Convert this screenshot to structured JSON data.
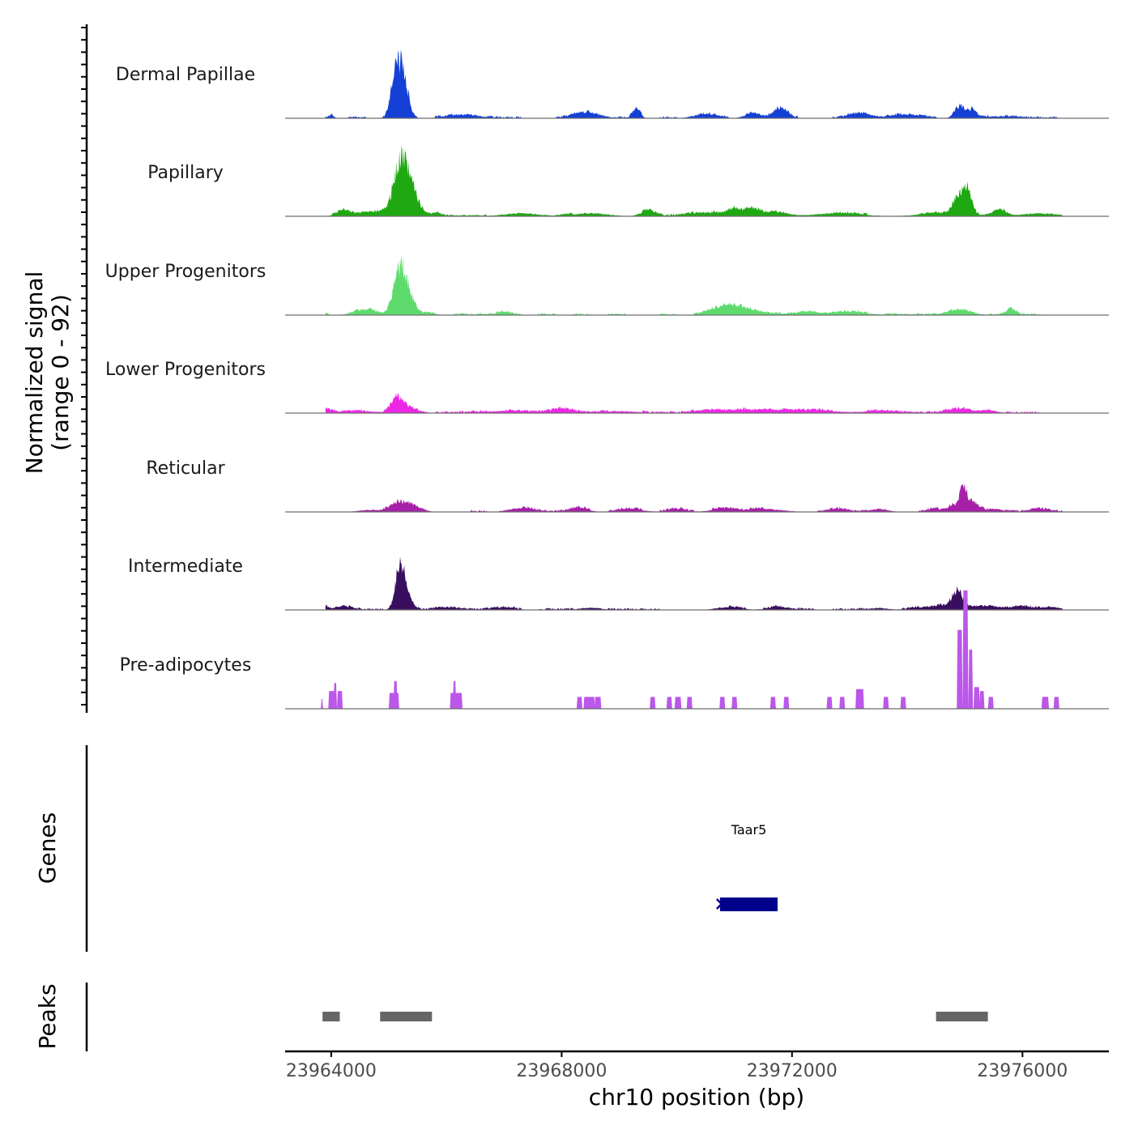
{
  "chart_data": {
    "type": "area",
    "title": "",
    "ylabel_line1": "Normalized signal",
    "ylabel_line2": "(range 0 - 92)",
    "ylim": [
      0,
      92
    ],
    "xlabel": "chr10 position (bp)",
    "xlim": [
      23963200,
      23977500
    ],
    "xticks": [
      23964000,
      23968000,
      23972000,
      23976000
    ],
    "xtick_labels": [
      "23964000",
      "23968000",
      "23972000",
      "23976000"
    ],
    "series": [
      {
        "name": "Dermal Papillae",
        "color": "#1540d6",
        "noise": [
          23963900,
          23976700,
          2
        ],
        "bumps": [
          [
            23963850,
            40,
            4
          ],
          [
            23964000,
            40,
            4
          ],
          [
            23965150,
            90,
            58
          ],
          [
            23965300,
            70,
            20
          ],
          [
            23966300,
            250,
            4
          ],
          [
            23968400,
            200,
            6
          ],
          [
            23969300,
            60,
            12
          ],
          [
            23970500,
            200,
            4
          ],
          [
            23971300,
            120,
            5
          ],
          [
            23971800,
            120,
            10
          ],
          [
            23973200,
            200,
            5
          ],
          [
            23974000,
            250,
            4
          ],
          [
            23974900,
            80,
            12
          ],
          [
            23975100,
            80,
            8
          ],
          [
            23975600,
            300,
            2
          ]
        ]
      },
      {
        "name": "Papillary",
        "color": "#1fa812",
        "noise": [
          23963900,
          23976700,
          2
        ],
        "bumps": [
          [
            23964200,
            90,
            5
          ],
          [
            23964800,
            400,
            4
          ],
          [
            23965230,
            130,
            56
          ],
          [
            23965450,
            120,
            12
          ],
          [
            23965800,
            100,
            3
          ],
          [
            23967300,
            300,
            3
          ],
          [
            23968500,
            300,
            3
          ],
          [
            23969500,
            120,
            6
          ],
          [
            23970500,
            300,
            4
          ],
          [
            23971000,
            120,
            6
          ],
          [
            23971300,
            120,
            7
          ],
          [
            23971700,
            200,
            5
          ],
          [
            23972800,
            400,
            3
          ],
          [
            23974500,
            300,
            3
          ],
          [
            23974850,
            80,
            12
          ],
          [
            23975020,
            90,
            28
          ],
          [
            23975600,
            120,
            6
          ],
          [
            23976300,
            300,
            3
          ]
        ]
      },
      {
        "name": "Upper Progenitors",
        "color": "#5fdb6e",
        "noise": [
          23963900,
          23976400,
          2
        ],
        "bumps": [
          [
            23963850,
            60,
            4
          ],
          [
            23964600,
            200,
            5
          ],
          [
            23965200,
            110,
            50
          ],
          [
            23965400,
            100,
            10
          ],
          [
            23965700,
            100,
            3
          ],
          [
            23967000,
            120,
            3
          ],
          [
            23970700,
            200,
            6
          ],
          [
            23971000,
            150,
            8
          ],
          [
            23971300,
            200,
            4
          ],
          [
            23972200,
            300,
            3
          ],
          [
            23973000,
            300,
            3
          ],
          [
            23974900,
            200,
            6
          ],
          [
            23975800,
            80,
            6
          ]
        ]
      },
      {
        "name": "Lower Progenitors",
        "color": "#ec27e4",
        "noise": [
          23963900,
          23976700,
          2
        ],
        "bumps": [
          [
            23963920,
            80,
            5
          ],
          [
            23964500,
            300,
            2
          ],
          [
            23965150,
            100,
            15
          ],
          [
            23965400,
            150,
            4
          ],
          [
            23967000,
            400,
            2
          ],
          [
            23968000,
            200,
            4
          ],
          [
            23969000,
            300,
            2
          ],
          [
            23970500,
            200,
            3
          ],
          [
            23971500,
            500,
            4
          ],
          [
            23972500,
            300,
            2
          ],
          [
            23973500,
            300,
            2
          ],
          [
            23974900,
            200,
            4
          ],
          [
            23975400,
            150,
            3
          ]
        ]
      },
      {
        "name": "Reticular",
        "color": "#a621a8",
        "noise": [
          23963900,
          23976700,
          2
        ],
        "bumps": [
          [
            23963850,
            20,
            6
          ],
          [
            23964700,
            200,
            2
          ],
          [
            23965200,
            150,
            10
          ],
          [
            23965500,
            120,
            4
          ],
          [
            23967300,
            200,
            4
          ],
          [
            23968300,
            150,
            4
          ],
          [
            23969200,
            200,
            3
          ],
          [
            23970000,
            150,
            3
          ],
          [
            23970800,
            200,
            3
          ],
          [
            23971500,
            300,
            3
          ],
          [
            23972800,
            150,
            3
          ],
          [
            23973500,
            150,
            3
          ],
          [
            23974500,
            150,
            3
          ],
          [
            23974780,
            60,
            6
          ],
          [
            23974970,
            70,
            24
          ],
          [
            23975150,
            100,
            8
          ],
          [
            23975500,
            150,
            3
          ],
          [
            23976300,
            150,
            3
          ]
        ]
      },
      {
        "name": "Intermediate",
        "color": "#3a0e5e",
        "noise": [
          23963900,
          23976700,
          2
        ],
        "bumps": [
          [
            23963880,
            40,
            5
          ],
          [
            23964200,
            150,
            4
          ],
          [
            23965200,
            80,
            48
          ],
          [
            23965350,
            80,
            10
          ],
          [
            23966000,
            200,
            2
          ],
          [
            23967000,
            200,
            2
          ],
          [
            23968500,
            200,
            2
          ],
          [
            23970900,
            200,
            3
          ],
          [
            23971800,
            200,
            3
          ],
          [
            23973500,
            150,
            2
          ],
          [
            23974500,
            300,
            4
          ],
          [
            23974870,
            90,
            18
          ],
          [
            23975300,
            250,
            4
          ],
          [
            23976000,
            200,
            3
          ],
          [
            23976500,
            150,
            3
          ]
        ]
      },
      {
        "name": "Pre-adipocytes",
        "color": "#bb57e9",
        "noise": [
          23963900,
          23976700,
          0
        ],
        "blocks": [
          [
            23963820,
            23963860,
            10
          ],
          [
            23963950,
            23964060,
            18
          ],
          [
            23964040,
            23964100,
            26
          ],
          [
            23964100,
            23964200,
            18
          ],
          [
            23965000,
            23965180,
            16
          ],
          [
            23965080,
            23965150,
            28
          ],
          [
            23966060,
            23966280,
            16
          ],
          [
            23966110,
            23966170,
            28
          ],
          [
            23968260,
            23968360,
            12
          ],
          [
            23968380,
            23968580,
            12
          ],
          [
            23968570,
            23968690,
            12
          ],
          [
            23969530,
            23969630,
            12
          ],
          [
            23969820,
            23969920,
            12
          ],
          [
            23969960,
            23970080,
            12
          ],
          [
            23970170,
            23970270,
            12
          ],
          [
            23970740,
            23970840,
            12
          ],
          [
            23970950,
            23971050,
            12
          ],
          [
            23971620,
            23971720,
            12
          ],
          [
            23971850,
            23971950,
            12
          ],
          [
            23972600,
            23972700,
            12
          ],
          [
            23972820,
            23972920,
            12
          ],
          [
            23973100,
            23973250,
            20
          ],
          [
            23973580,
            23973680,
            12
          ],
          [
            23973880,
            23973980,
            12
          ],
          [
            23974860,
            23974960,
            80
          ],
          [
            23974960,
            23975060,
            120
          ],
          [
            23975060,
            23975140,
            60
          ],
          [
            23975150,
            23975260,
            22
          ],
          [
            23975250,
            23975340,
            18
          ],
          [
            23975400,
            23975500,
            12
          ],
          [
            23976330,
            23976460,
            12
          ],
          [
            23976540,
            23976640,
            12
          ]
        ]
      }
    ],
    "genes": [
      {
        "name": "Taar5",
        "start": 23970750,
        "end": 23971750,
        "strand": "-",
        "color": "#00008b"
      }
    ],
    "genes_track_label": "Genes",
    "peaks_track_label": "Peaks",
    "peaks": [
      [
        23963850,
        23964150
      ],
      [
        23964850,
        23965750
      ],
      [
        23974500,
        23975400
      ]
    ],
    "peak_color": "#666666"
  }
}
